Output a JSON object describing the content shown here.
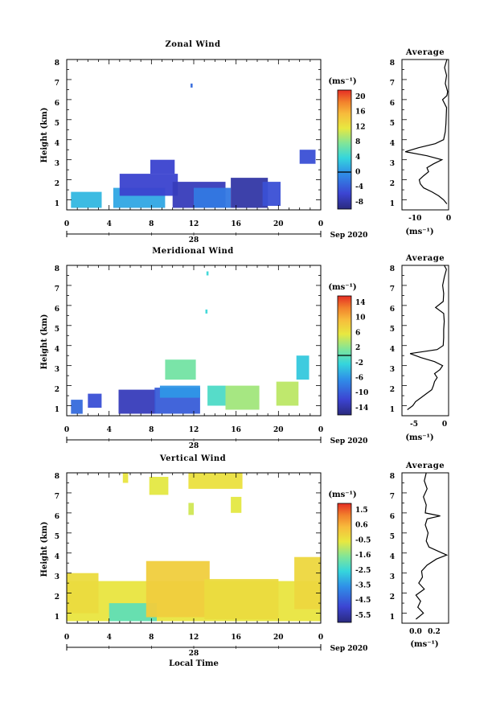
{
  "chart_data": [
    {
      "type": "heatmap",
      "title": "Zonal Wind",
      "xlabel": "",
      "ylabel": "Height (km)",
      "xlim": [
        0,
        24
      ],
      "ylim": [
        0.5,
        8
      ],
      "x_ticks": [
        "0",
        "4",
        "8",
        "12",
        "16",
        "20",
        "0"
      ],
      "y_ticks": [
        "1",
        "2",
        "3",
        "4",
        "5",
        "6",
        "7",
        "8"
      ],
      "date_label": "28",
      "month_label": "Sep 2020",
      "colorbar": {
        "unit": "(ms⁻¹)",
        "ticks": [
          "20",
          "16",
          "12",
          "8",
          "4",
          "0",
          "-4",
          "-8"
        ],
        "range": [
          -10,
          22
        ]
      },
      "regions": [
        {
          "x": [
            0.4,
            3.3
          ],
          "y": [
            0.6,
            1.4
          ],
          "value": 2
        },
        {
          "x": [
            4.4,
            9.3
          ],
          "y": [
            0.6,
            1.6
          ],
          "value": 1
        },
        {
          "x": [
            5.0,
            10.5
          ],
          "y": [
            1.2,
            2.3
          ],
          "value": -6
        },
        {
          "x": [
            7.9,
            10.2
          ],
          "y": [
            2.3,
            3.0
          ],
          "value": -6
        },
        {
          "x": [
            10.0,
            15.0
          ],
          "y": [
            0.6,
            1.9
          ],
          "value": -7
        },
        {
          "x": [
            12.0,
            15.5
          ],
          "y": [
            0.6,
            1.6
          ],
          "value": -2
        },
        {
          "x": [
            15.5,
            19.0
          ],
          "y": [
            0.6,
            2.1
          ],
          "value": -8
        },
        {
          "x": [
            18.5,
            20.2
          ],
          "y": [
            0.7,
            1.9
          ],
          "value": -5
        },
        {
          "x": [
            11.7,
            11.9
          ],
          "y": [
            6.6,
            6.8
          ],
          "value": -3
        },
        {
          "x": [
            22.0,
            23.5
          ],
          "y": [
            2.8,
            3.5
          ],
          "value": -5
        }
      ],
      "average_profile": {
        "title": "Average",
        "xlabel": "(ms⁻¹)",
        "xlim": [
          -14,
          0
        ],
        "x_ticks": [
          "-10",
          "0"
        ],
        "height": [
          0.8,
          1.0,
          1.2,
          1.4,
          1.6,
          1.8,
          2.0,
          2.2,
          2.4,
          2.6,
          2.8,
          3.0,
          3.2,
          3.4,
          3.6,
          3.8,
          4.0,
          4.4,
          4.8,
          5.2,
          5.6,
          6.0,
          6.2,
          6.4,
          6.8,
          7.2,
          7.6,
          8.0
        ],
        "value": [
          -0.5,
          -1.5,
          -3.0,
          -5.0,
          -7.5,
          -8.5,
          -8.8,
          -7.5,
          -6.0,
          -6.5,
          -4.5,
          -2.0,
          -6.5,
          -13.0,
          -9.0,
          -4.0,
          -1.5,
          -1.0,
          -0.8,
          -0.7,
          -0.6,
          -1.8,
          -0.5,
          -0.3,
          -1.0,
          -0.6,
          -1.2,
          -0.5
        ]
      }
    },
    {
      "type": "heatmap",
      "title": "Meridional Wind",
      "xlabel": "",
      "ylabel": "Height (km)",
      "xlim": [
        0,
        24
      ],
      "ylim": [
        0.5,
        8
      ],
      "x_ticks": [
        "0",
        "4",
        "8",
        "12",
        "16",
        "20",
        "0"
      ],
      "y_ticks": [
        "1",
        "2",
        "3",
        "4",
        "5",
        "6",
        "7",
        "8"
      ],
      "date_label": "28",
      "month_label": "Sep 2020",
      "colorbar": {
        "unit": "(ms⁻¹)",
        "ticks": [
          "14",
          "10",
          "6",
          "2",
          "-2",
          "-6",
          "-10",
          "-14"
        ],
        "range": [
          -16,
          16
        ]
      },
      "regions": [
        {
          "x": [
            0.4,
            1.5
          ],
          "y": [
            0.6,
            1.3
          ],
          "value": -9
        },
        {
          "x": [
            2.0,
            3.3
          ],
          "y": [
            0.9,
            1.6
          ],
          "value": -11
        },
        {
          "x": [
            4.9,
            8.4
          ],
          "y": [
            0.6,
            1.8
          ],
          "value": -13
        },
        {
          "x": [
            8.3,
            12.6
          ],
          "y": [
            0.6,
            1.9
          ],
          "value": -10
        },
        {
          "x": [
            8.8,
            12.6
          ],
          "y": [
            1.4,
            2.0
          ],
          "value": -6
        },
        {
          "x": [
            9.3,
            12.2
          ],
          "y": [
            2.3,
            3.3
          ],
          "value": 1
        },
        {
          "x": [
            13.3,
            15.0
          ],
          "y": [
            1.0,
            2.0
          ],
          "value": -1
        },
        {
          "x": [
            15.0,
            18.2
          ],
          "y": [
            0.8,
            2.0
          ],
          "value": 3
        },
        {
          "x": [
            19.8,
            21.9
          ],
          "y": [
            1.0,
            2.2
          ],
          "value": 4
        },
        {
          "x": [
            21.7,
            22.9
          ],
          "y": [
            2.3,
            3.5
          ],
          "value": -3
        },
        {
          "x": [
            13.1,
            13.3
          ],
          "y": [
            5.6,
            5.8
          ],
          "value": -2
        },
        {
          "x": [
            13.2,
            13.4
          ],
          "y": [
            7.5,
            7.7
          ],
          "value": -2
        }
      ],
      "average_profile": {
        "title": "Average",
        "xlabel": "(ms⁻¹)",
        "xlim": [
          -8,
          0.6
        ],
        "x_ticks": [
          "-5",
          "0"
        ],
        "height": [
          0.8,
          1.0,
          1.2,
          1.4,
          1.6,
          1.8,
          2.0,
          2.2,
          2.4,
          2.6,
          2.8,
          3.0,
          3.2,
          3.4,
          3.6,
          3.8,
          4.0,
          4.4,
          4.8,
          5.2,
          5.6,
          5.9,
          6.2,
          6.6,
          7.0,
          7.4,
          7.8,
          8.0
        ],
        "value": [
          -7.0,
          -6.0,
          -5.5,
          -4.5,
          -3.5,
          -2.5,
          -2.2,
          -2.0,
          -1.5,
          -2.0,
          -1.0,
          -0.5,
          -2.0,
          -4.5,
          -6.5,
          -1.5,
          -0.4,
          -0.3,
          -0.3,
          -0.2,
          -0.3,
          -1.8,
          -0.4,
          -0.3,
          -0.5,
          -0.2,
          0.2,
          -0.2
        ]
      }
    },
    {
      "type": "heatmap",
      "title": "Vertical Wind",
      "xlabel": "Local Time",
      "ylabel": "Height (km)",
      "xlim": [
        0,
        24
      ],
      "ylim": [
        0.5,
        8
      ],
      "x_ticks": [
        "0",
        "4",
        "8",
        "12",
        "16",
        "20",
        "0"
      ],
      "y_ticks": [
        "1",
        "2",
        "3",
        "4",
        "5",
        "6",
        "7",
        "8"
      ],
      "date_label": "28",
      "month_label": "Sep 2020",
      "colorbar": {
        "unit": "(ms⁻¹)",
        "ticks": [
          "1.5",
          "0.6",
          "-0.5",
          "-1.6",
          "-2.5",
          "-3.5",
          "-4.5",
          "-5.5"
        ],
        "range": [
          -6,
          2
        ]
      },
      "regions": [
        {
          "x": [
            0.0,
            24.0
          ],
          "y": [
            0.6,
            2.6
          ],
          "value": -0.5
        },
        {
          "x": [
            0.0,
            3.0
          ],
          "y": [
            1.0,
            3.0
          ],
          "value": -0.3
        },
        {
          "x": [
            4.0,
            8.5
          ],
          "y": [
            0.6,
            1.5
          ],
          "value": -2.0
        },
        {
          "x": [
            7.5,
            13.5
          ],
          "y": [
            0.8,
            3.6
          ],
          "value": 0.0
        },
        {
          "x": [
            13.0,
            20.0
          ],
          "y": [
            0.7,
            2.7
          ],
          "value": -0.3
        },
        {
          "x": [
            21.5,
            24.0
          ],
          "y": [
            1.2,
            3.8
          ],
          "value": -0.2
        },
        {
          "x": [
            5.3,
            5.8
          ],
          "y": [
            7.5,
            8.0
          ],
          "value": -0.5
        },
        {
          "x": [
            7.8,
            9.6
          ],
          "y": [
            6.9,
            7.8
          ],
          "value": -0.6
        },
        {
          "x": [
            11.5,
            16.6
          ],
          "y": [
            7.2,
            8.0
          ],
          "value": -0.4
        },
        {
          "x": [
            11.5,
            12.0
          ],
          "y": [
            5.9,
            6.5
          ],
          "value": -0.8
        },
        {
          "x": [
            15.5,
            16.5
          ],
          "y": [
            6.0,
            6.8
          ],
          "value": -0.6
        }
      ],
      "average_profile": {
        "title": "Average",
        "xlabel": "(ms⁻¹)",
        "xlim": [
          -0.15,
          0.35
        ],
        "x_ticks": [
          "0.0",
          "0.2"
        ],
        "height": [
          0.7,
          1.0,
          1.3,
          1.6,
          1.9,
          2.2,
          2.5,
          2.8,
          3.1,
          3.4,
          3.7,
          3.9,
          4.0,
          4.3,
          4.6,
          5.0,
          5.4,
          5.7,
          5.85,
          6.0,
          6.4,
          6.8,
          7.2,
          7.6,
          8.0
        ],
        "value": [
          0.0,
          0.08,
          0.02,
          0.05,
          0.0,
          0.09,
          0.03,
          0.07,
          0.06,
          0.12,
          0.22,
          0.33,
          0.28,
          0.14,
          0.11,
          0.13,
          0.1,
          0.12,
          0.26,
          0.1,
          0.11,
          0.08,
          0.12,
          0.09,
          0.11
        ]
      }
    }
  ]
}
